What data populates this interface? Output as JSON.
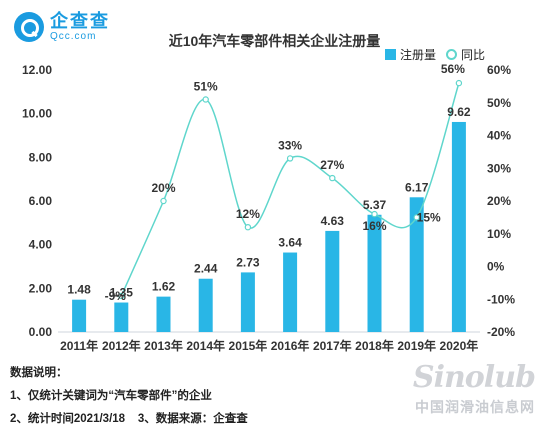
{
  "logo": {
    "name": "企查查",
    "domain": "Qcc.com"
  },
  "chart_data": {
    "type": "bar+line",
    "title": "近10年汽车零部件相关企业注册量",
    "categories": [
      "2011年",
      "2012年",
      "2013年",
      "2014年",
      "2015年",
      "2016年",
      "2017年",
      "2018年",
      "2019年",
      "2020年"
    ],
    "series": [
      {
        "name": "注册量",
        "type": "bar",
        "axis": "left",
        "values": [
          1.48,
          1.35,
          1.62,
          2.44,
          2.73,
          3.64,
          4.63,
          5.37,
          6.17,
          9.62
        ],
        "labels": [
          "1.48",
          "1.35",
          "1.62",
          "2.44",
          "2.73",
          "3.64",
          "4.63",
          "5.37",
          "6.17",
          "9.62"
        ],
        "color": "#29b6e6"
      },
      {
        "name": "同比",
        "type": "line",
        "axis": "right",
        "values": [
          null,
          -9,
          20,
          51,
          12,
          33,
          27,
          16,
          15,
          56
        ],
        "labels": [
          "",
          "-9%",
          "20%",
          "51%",
          "12%",
          "33%",
          "27%",
          "16%",
          "15%",
          "56%"
        ],
        "color": "#5fd6cc"
      }
    ],
    "y_left": {
      "min": 0,
      "max": 12,
      "ticks": [
        "0.00",
        "2.00",
        "4.00",
        "6.00",
        "8.00",
        "10.00",
        "12.00"
      ]
    },
    "y_right": {
      "min": -20,
      "max": 60,
      "ticks": [
        "-20%",
        "-10%",
        "0%",
        "10%",
        "20%",
        "30%",
        "40%",
        "50%",
        "60%"
      ]
    },
    "legend": {
      "position": "top-right"
    },
    "grid": false
  },
  "notes": {
    "heading": "数据说明：",
    "line1": "1、仅统计关键词为“汽车零部件”的企业",
    "line2": "2、统计时间2021/3/18    3、数据来源：企查查"
  },
  "watermark": {
    "brand": "Sinolub",
    "cn": "中国润滑油信息网"
  }
}
